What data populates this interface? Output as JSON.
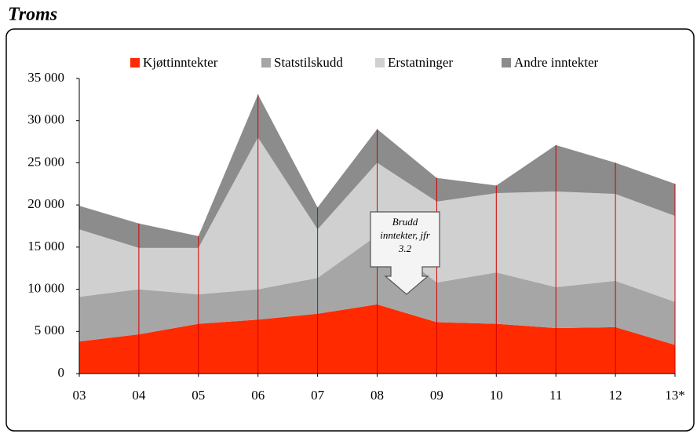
{
  "chart_data": {
    "type": "stacked_area",
    "title": "Troms",
    "categories": [
      "03",
      "04",
      "05",
      "06",
      "07",
      "08",
      "09",
      "10",
      "11",
      "12",
      "13*"
    ],
    "series": [
      {
        "name": "Kjøttinntekter",
        "color": "#ff2a00",
        "values": [
          3800,
          4650,
          5900,
          6400,
          7100,
          8200,
          6100,
          5900,
          5400,
          5500,
          3400
        ]
      },
      {
        "name": "Statstilskudd",
        "color": "#a6a6a6",
        "values": [
          5300,
          5350,
          3500,
          3600,
          4250,
          8200,
          4700,
          6100,
          4850,
          5500,
          5100
        ]
      },
      {
        "name": "Erstatninger",
        "color": "#d0d0d0",
        "values": [
          8000,
          4900,
          5500,
          18000,
          5750,
          8600,
          9600,
          9400,
          11350,
          10300,
          10200
        ]
      },
      {
        "name": "Andre inntekter",
        "color": "#8c8c8c",
        "values": [
          2800,
          2900,
          1400,
          5100,
          2600,
          4000,
          2800,
          900,
          5500,
          3700,
          3800
        ]
      }
    ],
    "ylim": [
      0,
      35000
    ],
    "yticks": [
      0,
      {
        "value": 5000,
        "label": "5 000"
      },
      {
        "value": 10000,
        "label": "10 000"
      },
      {
        "value": 15000,
        "label": "15 000"
      },
      {
        "value": 20000,
        "label": "20 000"
      },
      {
        "value": 25000,
        "label": "25 000"
      },
      {
        "value": 30000,
        "label": "30 000"
      },
      {
        "value": 35000,
        "label": "35 000"
      }
    ],
    "annotation": [
      "Brudd",
      "inntekter, jfr",
      "3.2"
    ],
    "legend": "top"
  }
}
